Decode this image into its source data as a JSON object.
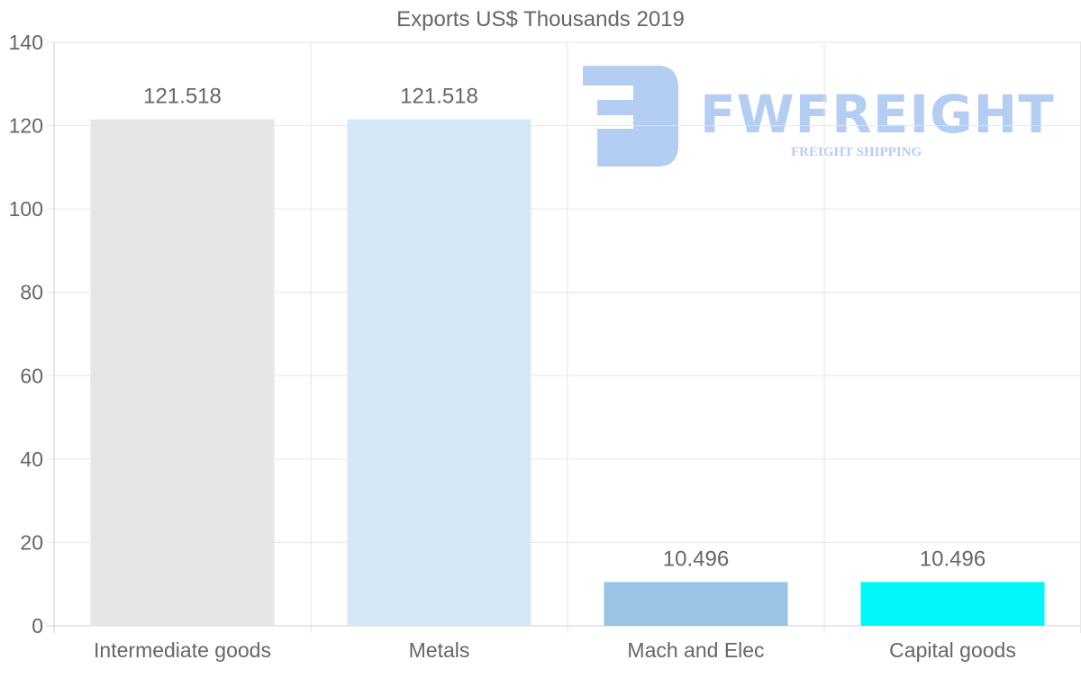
{
  "chart_data": {
    "type": "bar",
    "title": "Exports US$ Thousands 2019",
    "categories": [
      "Intermediate goods",
      "Metals",
      "Mach and Elec",
      "Capital goods"
    ],
    "values": [
      121.518,
      121.518,
      10.496,
      10.496
    ],
    "data_labels": [
      "121.518",
      "121.518",
      "10.496",
      "10.496"
    ],
    "colors": [
      "#e6e6e6",
      "#d6e7f8",
      "#9ac4e6",
      "#00f7f7"
    ],
    "xlabel": "",
    "ylabel": "",
    "ylim": [
      0,
      140
    ],
    "yticks": [
      0,
      20,
      40,
      60,
      80,
      100,
      120,
      140
    ],
    "grid": true,
    "legend": "none"
  },
  "watermark": {
    "name": "FWFREIGHT",
    "tagline": "FREIGHT SHIPPING",
    "color": "#b0cbf3"
  }
}
